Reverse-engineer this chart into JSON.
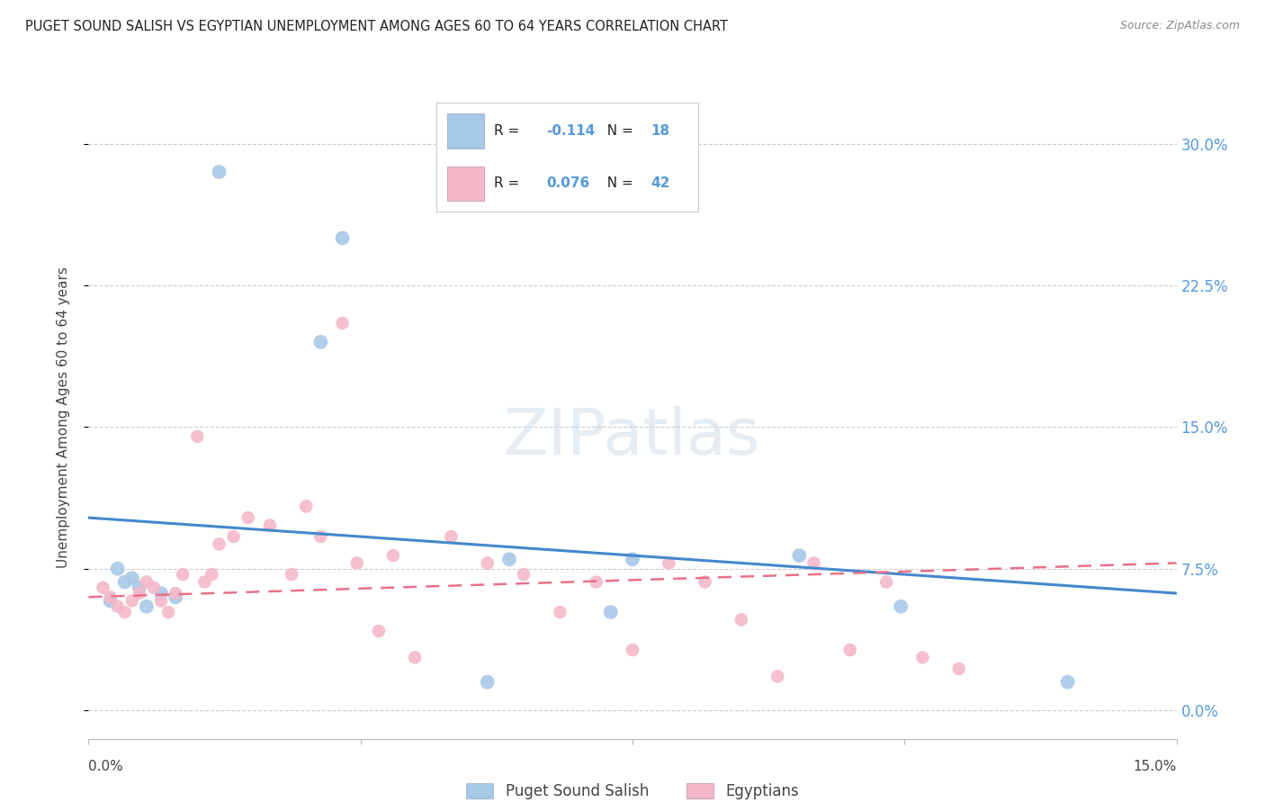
{
  "title": "PUGET SOUND SALISH VS EGYPTIAN UNEMPLOYMENT AMONG AGES 60 TO 64 YEARS CORRELATION CHART",
  "source": "Source: ZipAtlas.com",
  "ylabel": "Unemployment Among Ages 60 to 64 years",
  "ytick_values": [
    0.0,
    7.5,
    15.0,
    22.5,
    30.0
  ],
  "xlim": [
    0.0,
    15.0
  ],
  "ylim": [
    -1.5,
    32.5
  ],
  "legend_label1": "Puget Sound Salish",
  "legend_label2": "Egyptians",
  "R1": "-0.114",
  "N1": "18",
  "R2": "0.076",
  "N2": "42",
  "color_blue": "#a8c8e8",
  "color_pink": "#f4b8c8",
  "color_blue_line": "#4488cc",
  "color_pink_line": "#e8708a",
  "blue_scatter_x": [
    1.8,
    3.5,
    3.2,
    0.4,
    0.6,
    0.5,
    0.7,
    1.0,
    1.2,
    0.3,
    0.8,
    5.8,
    7.5,
    9.8,
    11.2,
    7.2,
    5.5,
    13.5
  ],
  "blue_scatter_y": [
    28.5,
    25.0,
    19.5,
    7.5,
    7.0,
    6.8,
    6.5,
    6.2,
    6.0,
    5.8,
    5.5,
    8.0,
    8.0,
    8.2,
    5.5,
    5.2,
    1.5,
    1.5
  ],
  "pink_scatter_x": [
    0.2,
    0.3,
    0.4,
    0.5,
    0.6,
    0.7,
    0.8,
    0.9,
    1.0,
    1.1,
    1.2,
    1.3,
    1.5,
    1.6,
    1.7,
    1.8,
    2.0,
    2.2,
    2.5,
    2.8,
    3.0,
    3.2,
    3.5,
    3.7,
    4.0,
    4.2,
    4.5,
    5.0,
    5.5,
    6.0,
    6.5,
    7.0,
    7.5,
    8.0,
    8.5,
    9.0,
    9.5,
    10.0,
    10.5,
    11.0,
    11.5,
    12.0
  ],
  "pink_scatter_y": [
    6.5,
    6.0,
    5.5,
    5.2,
    5.8,
    6.2,
    6.8,
    6.5,
    5.8,
    5.2,
    6.2,
    7.2,
    14.5,
    6.8,
    7.2,
    8.8,
    9.2,
    10.2,
    9.8,
    7.2,
    10.8,
    9.2,
    20.5,
    7.8,
    4.2,
    8.2,
    2.8,
    9.2,
    7.8,
    7.2,
    5.2,
    6.8,
    3.2,
    7.8,
    6.8,
    4.8,
    1.8,
    7.8,
    3.2,
    6.8,
    2.8,
    2.2
  ],
  "blue_line_x": [
    0.0,
    15.0
  ],
  "blue_line_y": [
    10.2,
    6.2
  ],
  "pink_line_x": [
    0.0,
    15.0
  ],
  "pink_line_y": [
    6.0,
    7.8
  ]
}
